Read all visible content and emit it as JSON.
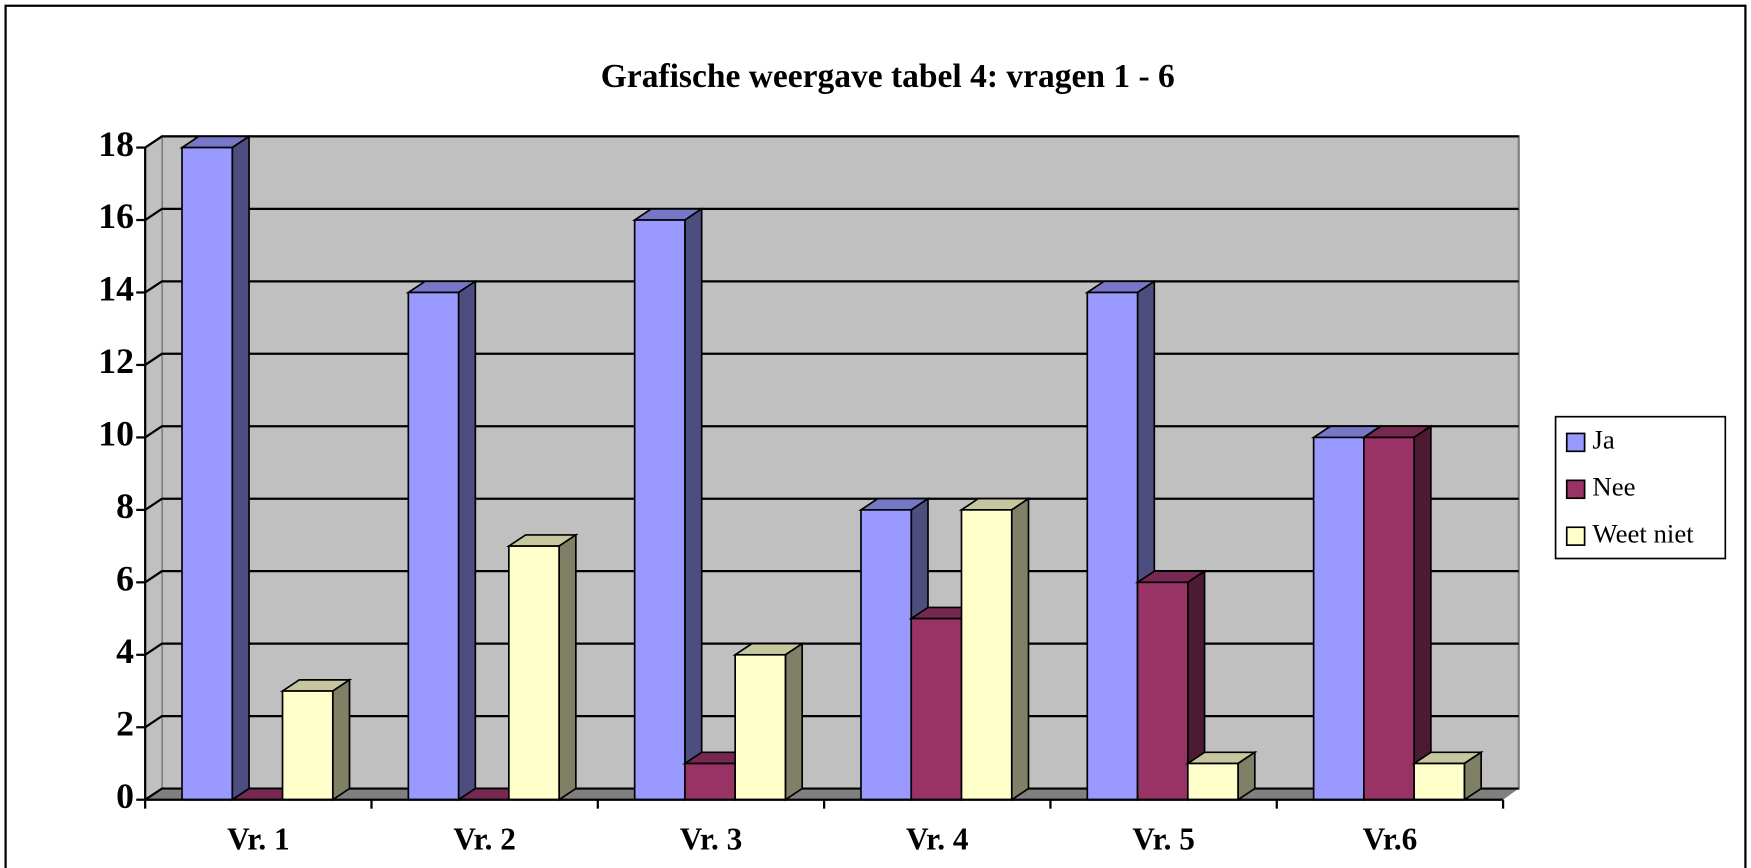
{
  "chart_data": {
    "type": "bar3d",
    "title": "Grafische weergave tabel 4: vragen 1 - 6",
    "categories": [
      "Vr. 1",
      "Vr. 2",
      "Vr. 3",
      "Vr. 4",
      "Vr. 5",
      "Vr.6"
    ],
    "series": [
      {
        "name": "Ja",
        "color": "#9999ff",
        "values": [
          18,
          14,
          16,
          8,
          14,
          10
        ]
      },
      {
        "name": "Nee",
        "color": "#993366",
        "values": [
          0,
          0,
          1,
          5,
          6,
          10
        ]
      },
      {
        "name": "Weet niet",
        "color": "#ffffcc",
        "values": [
          3,
          7,
          4,
          8,
          1,
          1
        ]
      }
    ],
    "ylim": [
      0,
      18
    ],
    "yticks": [
      0,
      2,
      4,
      6,
      8,
      10,
      12,
      14,
      16,
      18
    ],
    "grid": true,
    "legend": "right"
  }
}
